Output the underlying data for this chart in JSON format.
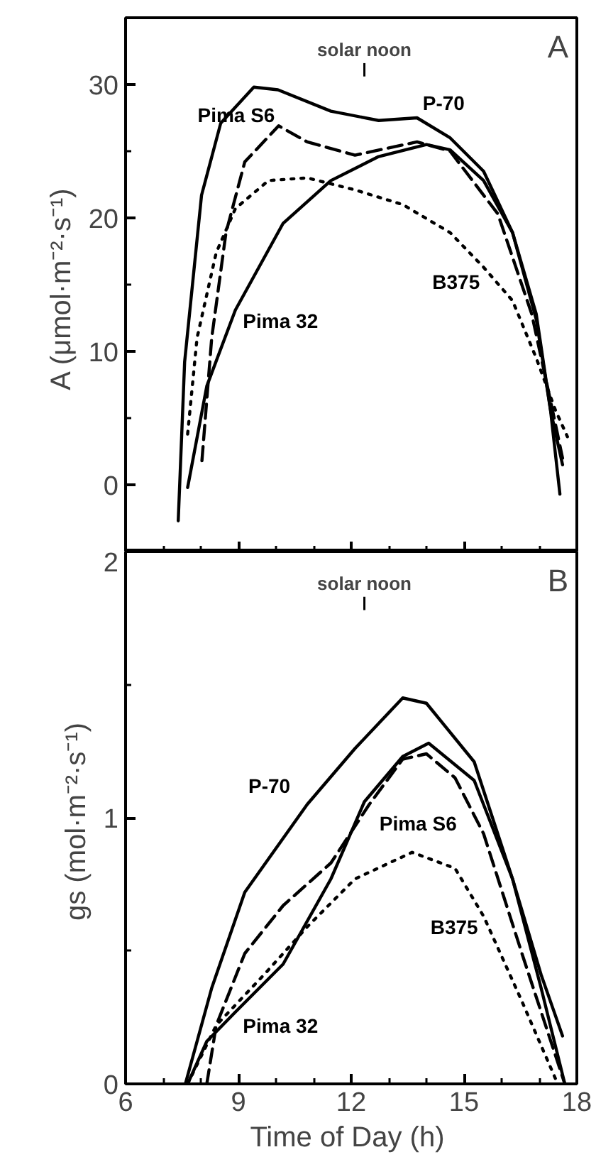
{
  "chart_data": [
    {
      "type": "line",
      "ylabel": "A  (μmol·m⁻²·s⁻¹)",
      "xlim": [
        6,
        18
      ],
      "ylim": [
        -5,
        35
      ],
      "tick_labels": "y",
      "grid": false,
      "xticks": [
        6,
        {
          "value": 7,
          "label": null
        },
        {
          "value": 8,
          "label": null
        },
        9,
        {
          "value": 10,
          "label": null
        },
        {
          "value": 11,
          "label": null
        },
        12,
        {
          "value": 13,
          "label": null
        },
        {
          "value": 14,
          "label": null
        },
        15,
        {
          "value": 16,
          "label": null
        },
        {
          "value": 17,
          "label": null
        },
        18
      ],
      "yticks": [
        0,
        {
          "value": 5,
          "label": null
        },
        10,
        {
          "value": 15,
          "label": null
        },
        20,
        {
          "value": 25,
          "label": null
        },
        30
      ],
      "annotations": [
        "A"
      ],
      "ref_lines": [
        {
          "axis": "x",
          "value": 12.35,
          "label": "solar noon"
        }
      ],
      "series": [
        {
          "name": "P-70",
          "color": "#000000",
          "line_style": "solid",
          "x": [
            7.4,
            7.57,
            8.02,
            8.53,
            9.41,
            10.05,
            11.46,
            12.73,
            13.75,
            14.63,
            15.52,
            16.29,
            16.92,
            17.3,
            17.55
          ],
          "values": [
            -2.7,
            9.2,
            21.7,
            27.1,
            29.8,
            29.6,
            28.0,
            27.3,
            27.5,
            26.0,
            23.5,
            18.9,
            12.8,
            5.6,
            -0.7
          ]
        },
        {
          "name": "Pima S6",
          "color": "#000000",
          "line_style": "dashed",
          "x": [
            8.03,
            8.29,
            8.67,
            9.17,
            10.07,
            10.83,
            12.1,
            13.75,
            14.63,
            15.9,
            16.8,
            17.3,
            17.62
          ],
          "values": [
            1.8,
            11.0,
            18.9,
            24.2,
            26.9,
            25.7,
            24.7,
            25.7,
            25.0,
            20.3,
            12.8,
            6.3,
            2.0
          ]
        },
        {
          "name": "Pima 32",
          "color": "#000000",
          "line_style": "solid",
          "x": [
            7.65,
            8.16,
            8.92,
            10.19,
            11.46,
            12.73,
            14.0,
            14.63,
            15.52,
            16.29,
            16.92,
            17.3,
            17.62
          ],
          "values": [
            -0.2,
            7.4,
            13.1,
            19.6,
            22.8,
            24.6,
            25.5,
            25.1,
            22.8,
            18.9,
            12.4,
            5.6,
            1.5
          ]
        },
        {
          "name": "B375",
          "color": "#000000",
          "line_style": "dotted",
          "x": [
            7.65,
            7.9,
            8.41,
            8.92,
            9.8,
            10.83,
            12.1,
            13.37,
            14.63,
            15.52,
            16.29,
            16.92,
            17.43,
            17.75
          ],
          "values": [
            3.8,
            11.0,
            17.4,
            20.7,
            22.8,
            23.0,
            22.1,
            21.0,
            18.9,
            16.3,
            13.8,
            9.5,
            5.6,
            3.6
          ]
        }
      ]
    },
    {
      "type": "line",
      "xlabel": "Time of Day  (h)",
      "ylabel": "gs  (mol·m⁻²·s⁻¹)",
      "xlim": [
        6,
        18
      ],
      "ylim": [
        0,
        2
      ],
      "grid": false,
      "xticks": [
        6,
        {
          "value": 7,
          "label": null
        },
        {
          "value": 8,
          "label": null
        },
        9,
        {
          "value": 10,
          "label": null
        },
        {
          "value": 11,
          "label": null
        },
        12,
        {
          "value": 13,
          "label": null
        },
        {
          "value": 14,
          "label": null
        },
        15,
        {
          "value": 16,
          "label": null
        },
        {
          "value": 17,
          "label": null
        },
        18
      ],
      "yticks": [
        0,
        {
          "value": 0.5,
          "label": null
        },
        1,
        {
          "value": 1.5,
          "label": null
        },
        2
      ],
      "annotations": [
        "B"
      ],
      "ref_lines": [
        {
          "axis": "x",
          "value": 12.35,
          "label": "solar noon"
        }
      ],
      "series": [
        {
          "name": "P-70",
          "color": "#000000",
          "line_style": "solid",
          "x": [
            7.59,
            8.29,
            9.17,
            10.83,
            12.1,
            13.37,
            14.0,
            15.27,
            16.29,
            17.05,
            17.62
          ],
          "values": [
            0,
            0.36,
            0.72,
            1.05,
            1.26,
            1.45,
            1.43,
            1.21,
            0.77,
            0.41,
            0.18
          ]
        },
        {
          "name": "Pima S6",
          "color": "#000000",
          "line_style": "dashed",
          "x": [
            8.16,
            8.41,
            9.17,
            10.19,
            11.46,
            12.48,
            13.37,
            14.0,
            14.76,
            15.52,
            16.54,
            17.68
          ],
          "values": [
            0,
            0.22,
            0.49,
            0.67,
            0.83,
            1.05,
            1.22,
            1.24,
            1.15,
            0.94,
            0.49,
            0
          ]
        },
        {
          "name": "Pima 32",
          "color": "#000000",
          "line_style": "solid",
          "x": [
            7.65,
            8.16,
            8.92,
            10.19,
            11.46,
            12.35,
            13.37,
            14.06,
            15.27,
            16.29,
            17.05,
            17.68
          ],
          "values": [
            0,
            0.16,
            0.27,
            0.45,
            0.77,
            1.06,
            1.23,
            1.28,
            1.14,
            0.77,
            0.36,
            0
          ]
        },
        {
          "name": "B375",
          "color": "#000000",
          "line_style": "dotted",
          "x": [
            7.65,
            8.41,
            9.68,
            10.83,
            12.1,
            13.62,
            14.76,
            15.52,
            16.54,
            17.43
          ],
          "values": [
            0,
            0.22,
            0.41,
            0.59,
            0.77,
            0.87,
            0.81,
            0.63,
            0.31,
            0.02
          ]
        }
      ]
    }
  ]
}
